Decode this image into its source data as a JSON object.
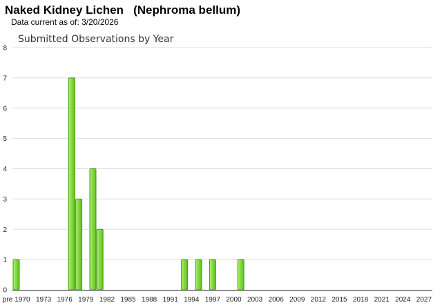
{
  "header": {
    "title": "Naked Kidney Lichen   (Nephroma bellum)",
    "date_label": "Data current as of:",
    "date_value": "3/20/2026"
  },
  "chart_data": {
    "type": "bar",
    "title": "Submitted Observations by Year",
    "xlabel": "",
    "ylabel": "",
    "ylim": [
      0,
      8
    ],
    "yticks": [
      0,
      1,
      2,
      3,
      4,
      5,
      6,
      7,
      8
    ],
    "grid": true,
    "legend": "none",
    "bar_color": "#7ad33a",
    "bar_edge_color": "#4a9a18",
    "x_tick_labels": [
      "pre",
      "1970",
      "1973",
      "1976",
      "1979",
      "1982",
      "1985",
      "1988",
      "1991",
      "1994",
      "1997",
      "2000",
      "2003",
      "2006",
      "2009",
      "2012",
      "2015",
      "2018",
      "2021",
      "2024",
      "2027"
    ],
    "categories": [
      "pre",
      "1977",
      "1978",
      "1980",
      "1981",
      "1993",
      "1995",
      "1997",
      "2001"
    ],
    "values": [
      1,
      7,
      3,
      4,
      2,
      1,
      1,
      1,
      1
    ]
  }
}
